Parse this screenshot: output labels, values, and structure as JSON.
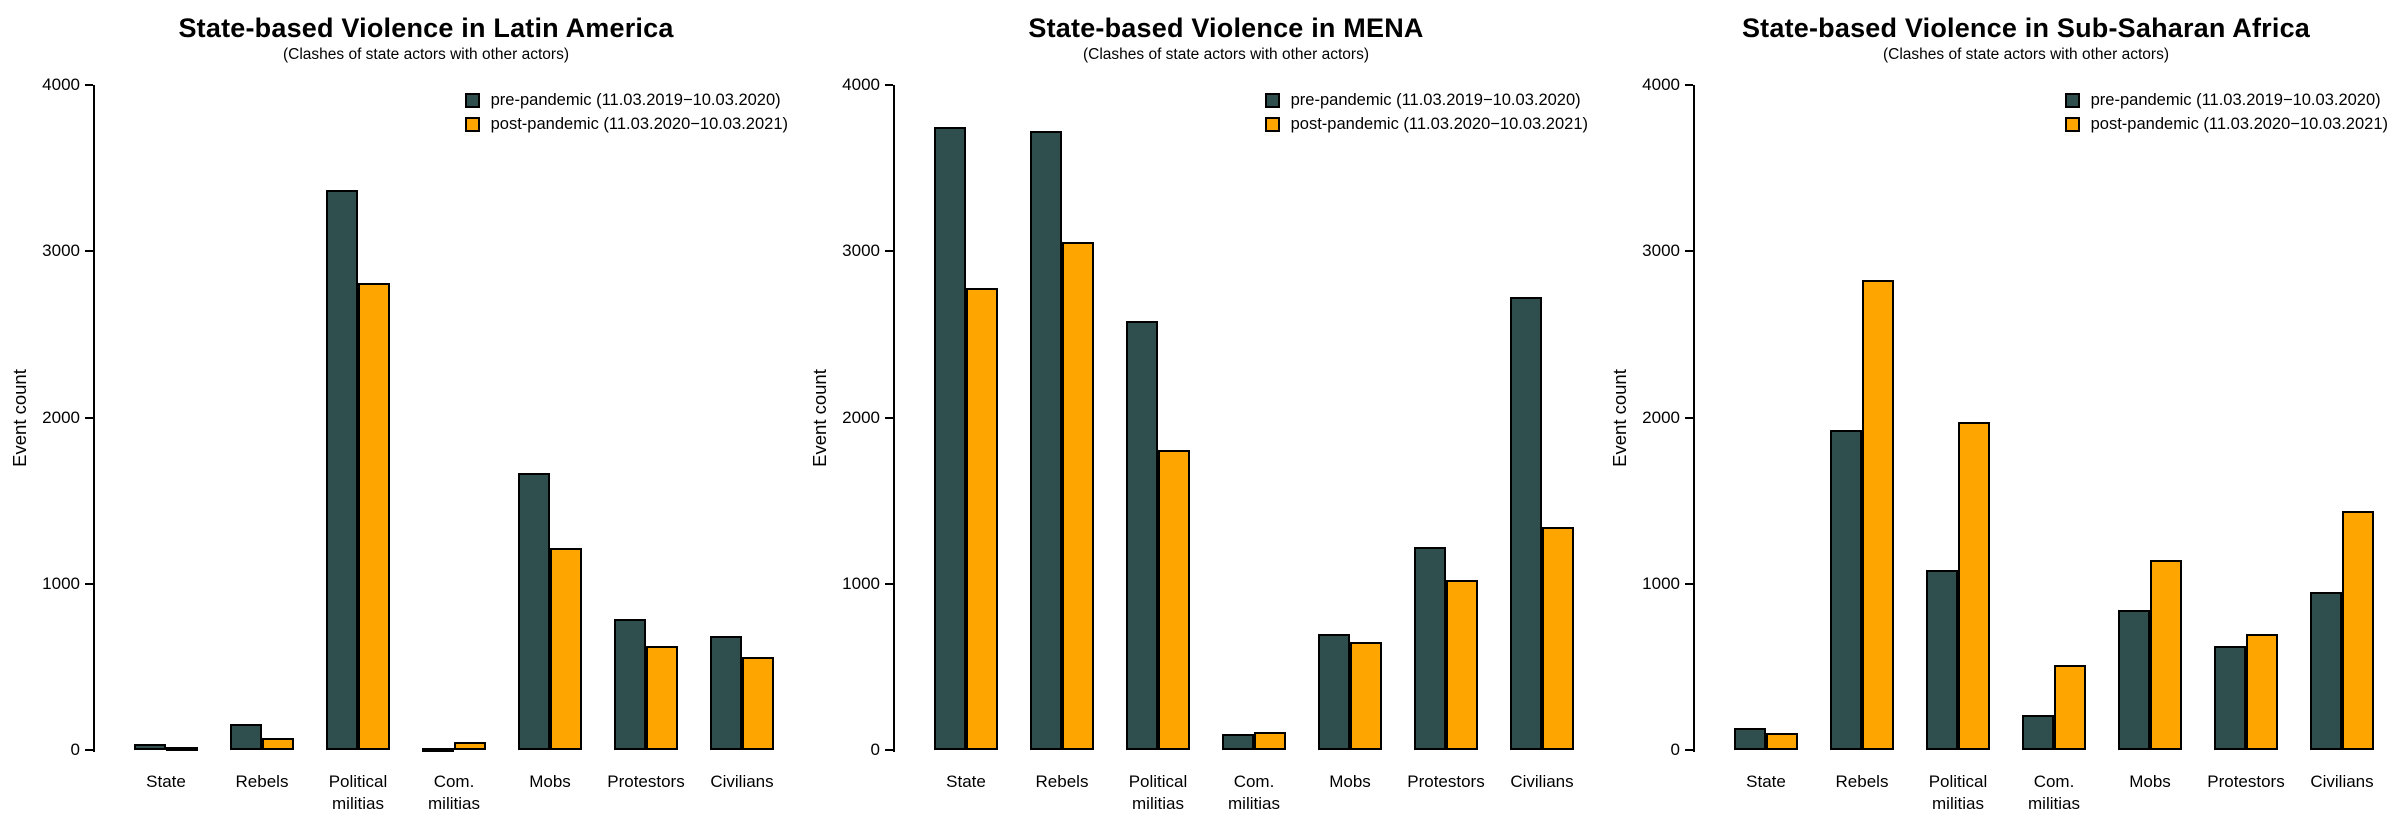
{
  "figure": {
    "background": "#ffffff",
    "text_color": "#000000",
    "bar_border_color": "#000000"
  },
  "chart_data": [
    {
      "type": "bar",
      "title": "State-based Violence in Latin America",
      "subtitle": "(Clashes of state actors with other actors)",
      "ylabel": "Event count",
      "xlabel": "",
      "ylim": [
        0,
        4000
      ],
      "yticks": [
        0,
        1000,
        2000,
        3000,
        4000
      ],
      "grid": false,
      "legend_position": "top-right",
      "categories": [
        "State",
        "Rebels",
        "Political militias",
        "Com. militias",
        "Mobs",
        "Protestors",
        "Civilians"
      ],
      "series": [
        {
          "name": "pre-pandemic (11.03.2019−10.03.2020)",
          "color": "#2F4F4F",
          "values": [
            35,
            155,
            3370,
            10,
            1665,
            785,
            685
          ]
        },
        {
          "name": "post-pandemic (11.03.2020−10.03.2021)",
          "color": "#FFA500",
          "values": [
            20,
            75,
            2810,
            50,
            1215,
            625,
            560
          ]
        }
      ]
    },
    {
      "type": "bar",
      "title": "State-based Violence in MENA",
      "subtitle": "(Clashes of state actors with other actors)",
      "ylabel": "Event count",
      "xlabel": "",
      "ylim": [
        0,
        4000
      ],
      "yticks": [
        0,
        1000,
        2000,
        3000,
        4000
      ],
      "grid": false,
      "legend_position": "top-right",
      "categories": [
        "State",
        "Rebels",
        "Political militias",
        "Com. militias",
        "Mobs",
        "Protestors",
        "Civilians"
      ],
      "series": [
        {
          "name": "pre-pandemic (11.03.2019−10.03.2020)",
          "color": "#2F4F4F",
          "values": [
            3745,
            3725,
            2580,
            95,
            695,
            1220,
            2725
          ]
        },
        {
          "name": "post-pandemic (11.03.2020−10.03.2021)",
          "color": "#FFA500",
          "values": [
            2780,
            3055,
            1805,
            110,
            650,
            1020,
            1340
          ]
        }
      ]
    },
    {
      "type": "bar",
      "title": "State-based Violence in Sub-Saharan Africa",
      "subtitle": "(Clashes of state actors with other actors)",
      "ylabel": "Event count",
      "xlabel": "",
      "ylim": [
        0,
        4000
      ],
      "yticks": [
        0,
        1000,
        2000,
        3000,
        4000
      ],
      "grid": false,
      "legend_position": "top-right",
      "categories": [
        "State",
        "Rebels",
        "Political militias",
        "Com. militias",
        "Mobs",
        "Protestors",
        "Civilians"
      ],
      "series": [
        {
          "name": "pre-pandemic (11.03.2019−10.03.2020)",
          "color": "#2F4F4F",
          "values": [
            130,
            1925,
            1080,
            210,
            845,
            625,
            950
          ]
        },
        {
          "name": "post-pandemic (11.03.2020−10.03.2021)",
          "color": "#FFA500",
          "values": [
            100,
            2825,
            1970,
            510,
            1145,
            700,
            1435
          ]
        }
      ]
    }
  ]
}
